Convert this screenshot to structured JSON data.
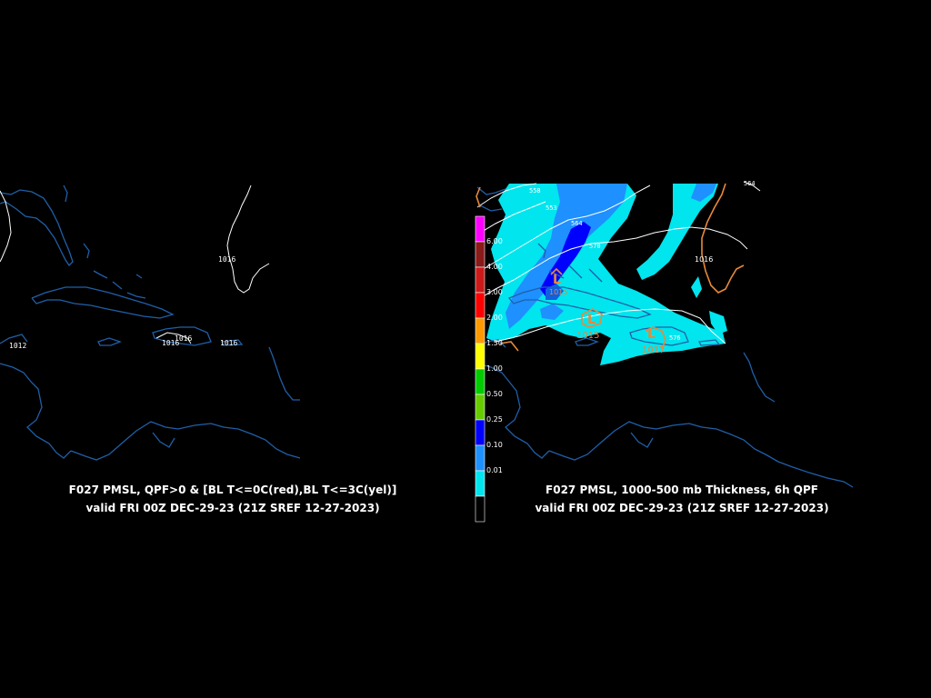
{
  "left_panel": {
    "title_line1": "F027 PMSL, QPF>0 & [BL T<=0C(red),BL T<=3C(yel)]",
    "title_line2": "valid FRI 00Z DEC-29-23 (21Z SREF 12-27-2023)",
    "isobar_labels": [
      "1016",
      "1016",
      "1016",
      "1016",
      "1012"
    ]
  },
  "right_panel": {
    "title_line1": "F027 PMSL, 1000-500 mb Thickness, 6h QPF",
    "title_line2": "valid FRI 00Z DEC-29-23 (21Z SREF 12-27-2023)",
    "thickness_labels": [
      "558",
      "553",
      "564",
      "570",
      "576",
      "564"
    ],
    "pressure_labels": [
      "1015",
      "1015",
      "1017",
      "1016"
    ],
    "low_symbols": [
      "L",
      "L",
      "L"
    ]
  },
  "qpf_legend": {
    "items": [
      {
        "label": "",
        "color": "#ff00ff"
      },
      {
        "label": "6.00",
        "color": "#8b1a1a"
      },
      {
        "label": "4.00",
        "color": "#cc1a1a"
      },
      {
        "label": "3.00",
        "color": "#ff0000"
      },
      {
        "label": "2.00",
        "color": "#ff9900"
      },
      {
        "label": "1.50",
        "color": "#ffff00"
      },
      {
        "label": "1.00",
        "color": "#00cc00"
      },
      {
        "label": "0.50",
        "color": "#66cc00"
      },
      {
        "label": "0.25",
        "color": "#0000ff"
      },
      {
        "label": "0.10",
        "color": "#1e90ff"
      },
      {
        "label": "0.01",
        "color": "#00e5ee"
      },
      {
        "label": "",
        "color": "#000000"
      }
    ]
  },
  "colors": {
    "coastline": "#1f5fa8",
    "isobar": "#ffffff",
    "pressure_orange": "#e8893a",
    "qpf_light": "#00e5ee",
    "qpf_mid": "#1e90ff",
    "qpf_dark": "#0000ff"
  }
}
